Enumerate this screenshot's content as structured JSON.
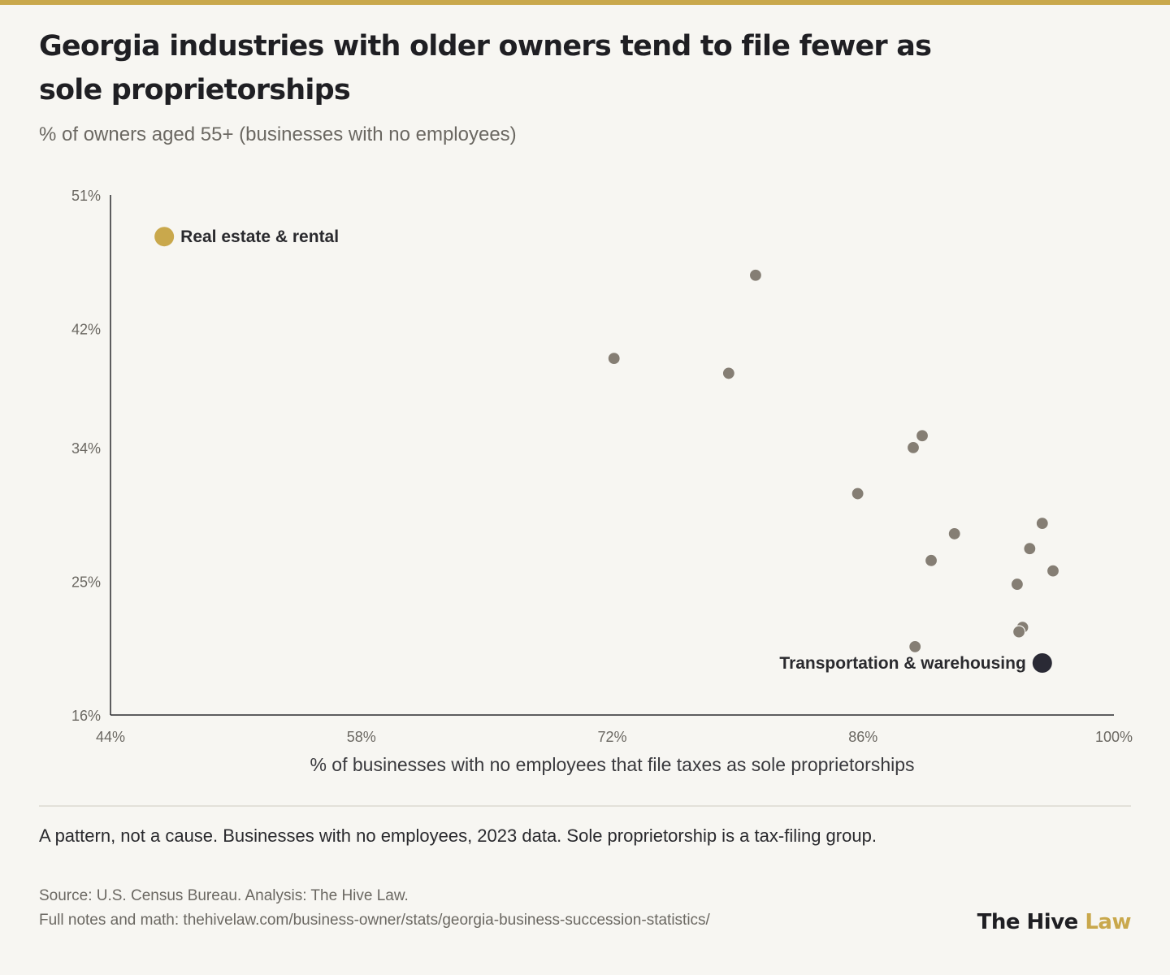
{
  "header": {
    "title": "Georgia industries with older owners tend to file fewer as sole proprietorships",
    "subtitle": "% of owners aged 55+ (businesses with no employees)"
  },
  "footer": {
    "note": "A pattern, not a cause. Businesses with no employees, 2023 data. Sole proprietorship is a tax-filing group.",
    "source_line1": "Source: U.S. Census Bureau. Analysis: The Hive Law.",
    "source_line2": "Full notes and math: thehivelaw.com/business-owner/stats/georgia-business-succession-statistics/",
    "brand_part1": "The Hive ",
    "brand_part2": "Law"
  },
  "colors": {
    "accent": "#c9a84c",
    "highlight_dark": "#2a2a35",
    "point": "#857e74",
    "axis": "#2a2a2e"
  },
  "chart_data": {
    "type": "scatter",
    "xlabel": "% of businesses with no employees that file taxes as sole proprietorships",
    "ylabel": "",
    "xlim": [
      44,
      100
    ],
    "ylim": [
      16,
      51
    ],
    "x_ticks": [
      44,
      58,
      72,
      86,
      100
    ],
    "x_tick_labels": [
      "44%",
      "58%",
      "72%",
      "86%",
      "100%"
    ],
    "y_ticks": [
      16,
      25,
      34,
      42,
      51
    ],
    "y_tick_labels": [
      "16%",
      "25%",
      "34%",
      "42%",
      "51%"
    ],
    "grid": false,
    "points": [
      {
        "x": 47.0,
        "y": 48.2,
        "label": "Real estate & rental",
        "highlight": "accent"
      },
      {
        "x": 80.0,
        "y": 45.6
      },
      {
        "x": 72.1,
        "y": 40.0
      },
      {
        "x": 78.5,
        "y": 39.0
      },
      {
        "x": 89.3,
        "y": 34.8
      },
      {
        "x": 88.8,
        "y": 34.0
      },
      {
        "x": 85.7,
        "y": 30.9
      },
      {
        "x": 91.1,
        "y": 28.2
      },
      {
        "x": 96.0,
        "y": 28.9
      },
      {
        "x": 95.3,
        "y": 27.2
      },
      {
        "x": 89.8,
        "y": 26.4
      },
      {
        "x": 94.6,
        "y": 24.8
      },
      {
        "x": 96.6,
        "y": 25.7
      },
      {
        "x": 94.9,
        "y": 21.9
      },
      {
        "x": 94.7,
        "y": 21.6
      },
      {
        "x": 88.9,
        "y": 20.6
      },
      {
        "x": 96.0,
        "y": 19.5,
        "label": "Transportation & warehousing",
        "highlight": "dark"
      }
    ]
  }
}
